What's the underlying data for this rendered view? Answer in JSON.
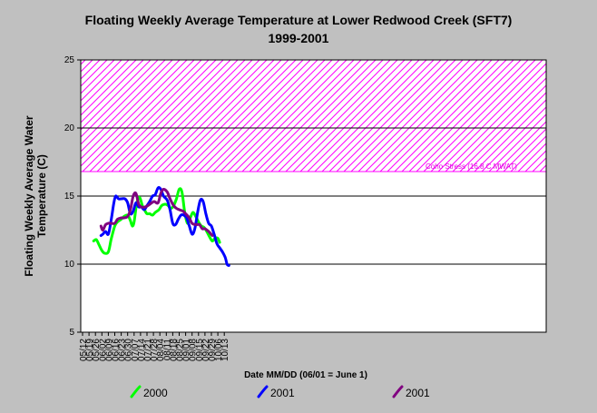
{
  "chart_data": {
    "type": "line",
    "title": "Floating Weekly Average Temperature at Lower Redwood Creek (SFT7)",
    "subtitle": "1999-2001",
    "xlabel": "Date MM/DD (06/01 = June 1)",
    "ylabel_line1": "Floating Weekly Average Water",
    "ylabel_line2": "Temperature (C)",
    "x_tick_labels": [
      "05/12",
      "05/19",
      "05/26",
      "06/02",
      "06/09",
      "06/16",
      "06/23",
      "06/30",
      "07/07",
      "07/14",
      "07/21",
      "07/28",
      "08/04",
      "08/11",
      "08/18",
      "08/25",
      "09/01",
      "09/08",
      "09/15",
      "09/22",
      "09/29",
      "10/06",
      "10/13"
    ],
    "y_tick_labels": [
      "5",
      "10",
      "15",
      "20",
      "25"
    ],
    "ylim": [
      5,
      25
    ],
    "grid": "horizontal at 10, 15, 20",
    "stress_band": {
      "from": 16.8,
      "to": 25,
      "label": "Coho Stress (16.8 C MWAT)",
      "color": "#ff00ff"
    },
    "series": [
      {
        "name": "2000",
        "color": "#00ff00",
        "dates": [
          "05/24",
          "05/27",
          "05/30",
          "06/02",
          "06/05",
          "06/09",
          "06/12",
          "06/16",
          "06/19",
          "06/23",
          "06/26",
          "06/30",
          "07/03",
          "07/05",
          "07/07",
          "07/10",
          "07/13",
          "07/16",
          "07/19",
          "07/21",
          "07/24",
          "07/27",
          "07/30",
          "08/03",
          "08/06",
          "08/10",
          "08/13",
          "08/16",
          "08/19",
          "08/22",
          "08/25",
          "08/28",
          "08/31",
          "09/03",
          "09/06",
          "09/09",
          "09/12",
          "09/15",
          "09/18",
          "09/21",
          "09/24",
          "09/27",
          "09/30",
          "10/03",
          "10/06",
          "10/08"
        ],
        "values": [
          11.7,
          11.8,
          11.4,
          11.0,
          10.8,
          10.9,
          11.8,
          12.8,
          13.1,
          13.3,
          13.5,
          13.6,
          13.2,
          12.8,
          13.1,
          14.5,
          14.9,
          14.3,
          13.9,
          13.7,
          13.7,
          13.6,
          13.8,
          14.0,
          14.3,
          14.4,
          14.3,
          14.1,
          14.3,
          14.8,
          15.5,
          15.3,
          13.8,
          13.0,
          13.4,
          13.8,
          13.5,
          13.1,
          12.8,
          12.7,
          12.4,
          12.0,
          11.7,
          11.9,
          11.9,
          11.6
        ]
      },
      {
        "name": "2001",
        "color": "#0000ff",
        "dates": [
          "06/01",
          "06/03",
          "06/06",
          "06/09",
          "06/12",
          "06/15",
          "06/17",
          "06/20",
          "06/23",
          "06/27",
          "06/30",
          "07/03",
          "07/06",
          "07/09",
          "07/12",
          "07/15",
          "07/18",
          "07/21",
          "07/24",
          "07/27",
          "07/30",
          "08/02",
          "08/05",
          "08/08",
          "08/12",
          "08/15",
          "08/18",
          "08/21",
          "08/24",
          "08/27",
          "08/30",
          "09/02",
          "09/05",
          "09/08",
          "09/11",
          "09/14",
          "09/17",
          "09/20",
          "09/23",
          "09/26",
          "09/29",
          "10/02",
          "10/05",
          "10/08",
          "10/11",
          "10/14",
          "10/16",
          "10/18"
        ],
        "values": [
          12.1,
          12.2,
          12.4,
          12.2,
          13.2,
          14.5,
          15.0,
          14.8,
          14.8,
          14.8,
          14.5,
          13.7,
          13.9,
          14.5,
          14.2,
          14.2,
          14.0,
          14.3,
          14.6,
          15.0,
          15.1,
          15.6,
          15.5,
          15.0,
          14.7,
          14.0,
          13.0,
          12.9,
          13.3,
          13.6,
          13.6,
          13.4,
          12.8,
          12.2,
          12.6,
          13.8,
          14.7,
          14.6,
          13.7,
          13.0,
          12.8,
          12.2,
          11.5,
          11.2,
          10.9,
          10.5,
          10.0,
          9.9
        ]
      },
      {
        "name": "2001",
        "color": "#800080",
        "dates": [
          "06/01",
          "06/03",
          "06/06",
          "06/09",
          "06/12",
          "06/16",
          "06/19",
          "06/23",
          "06/26",
          "06/30",
          "07/03",
          "07/06",
          "07/09",
          "07/12",
          "07/15",
          "07/19",
          "07/22",
          "07/26",
          "07/29",
          "08/02",
          "08/05",
          "08/08",
          "08/12",
          "08/15",
          "08/19",
          "08/22",
          "08/25",
          "08/29",
          "09/01",
          "09/05",
          "09/08",
          "09/12",
          "09/16",
          "09/19",
          "09/22",
          "09/26",
          "09/30"
        ],
        "values": [
          12.8,
          12.5,
          12.9,
          13.0,
          13.0,
          13.0,
          13.3,
          13.4,
          13.4,
          13.5,
          14.0,
          15.0,
          15.2,
          14.4,
          14.2,
          14.2,
          14.3,
          14.5,
          14.6,
          14.5,
          15.2,
          15.5,
          15.3,
          14.8,
          14.3,
          14.1,
          14.0,
          13.9,
          13.7,
          13.4,
          13.0,
          12.9,
          12.9,
          12.6,
          12.6,
          12.4,
          12.1
        ]
      }
    ]
  }
}
